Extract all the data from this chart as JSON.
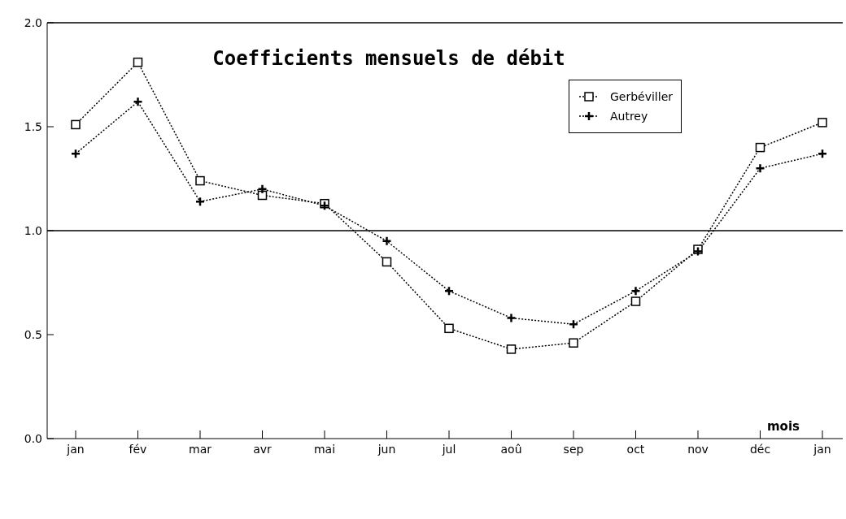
{
  "chart_data": {
    "type": "line",
    "title": "Coefficients mensuels de débit",
    "xlabel": "mois",
    "categories": [
      "jan",
      "fév",
      "mar",
      "avr",
      "mai",
      "jun",
      "jul",
      "aoû",
      "sep",
      "oct",
      "nov",
      "déc",
      "jan"
    ],
    "series": [
      {
        "name": "Gerbéviller",
        "color": "#000000",
        "marker": "square",
        "values": [
          1.51,
          1.81,
          1.24,
          1.17,
          1.13,
          0.85,
          0.53,
          0.43,
          0.46,
          0.66,
          0.91,
          1.4,
          1.52
        ]
      },
      {
        "name": "Autrey",
        "color": "#000000",
        "marker": "cross",
        "values": [
          1.37,
          1.62,
          1.14,
          1.2,
          1.12,
          0.95,
          0.71,
          0.58,
          0.55,
          0.71,
          0.9,
          1.3,
          1.37
        ]
      }
    ],
    "ylim": [
      0,
      2
    ],
    "yticks": [
      {
        "value": 0,
        "label": "0.0"
      },
      {
        "value": 0.5,
        "label": "0.5"
      },
      {
        "value": 1,
        "label": "1.0"
      },
      {
        "value": 1.5,
        "label": "1.5"
      },
      {
        "value": 2,
        "label": "2.0"
      }
    ],
    "ref_lines": [
      {
        "axis": "y",
        "value": 1,
        "color": "#000000",
        "line_style": "solid"
      }
    ],
    "grid": false,
    "legend": "top right",
    "line_style": "dotted"
  }
}
